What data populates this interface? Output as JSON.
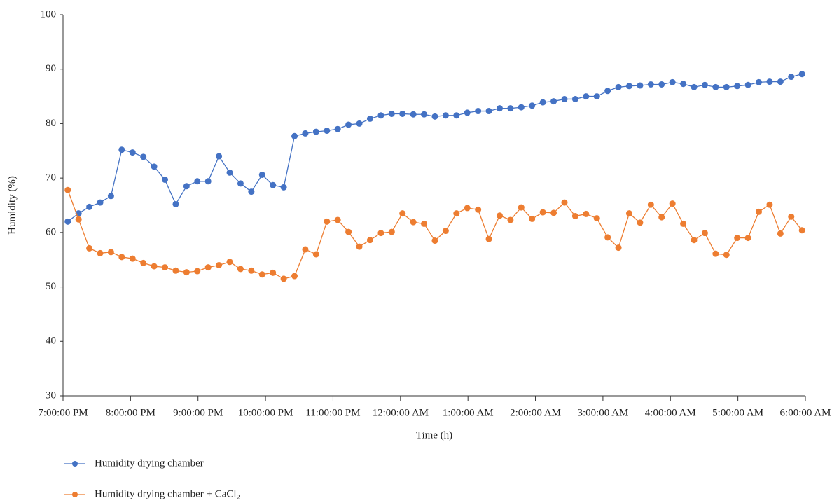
{
  "chart_data": {
    "type": "line",
    "xlabel": "Time (h)",
    "ylabel": "Humidity (%)",
    "x": [
      0.07,
      0.23,
      0.39,
      0.55,
      0.71,
      0.87,
      1.03,
      1.19,
      1.35,
      1.51,
      1.67,
      1.83,
      1.99,
      2.15,
      2.31,
      2.47,
      2.63,
      2.79,
      2.95,
      3.11,
      3.27,
      3.43,
      3.59,
      3.75,
      3.91,
      4.07,
      4.23,
      4.39,
      4.55,
      4.71,
      4.87,
      5.03,
      5.19,
      5.35,
      5.51,
      5.67,
      5.83,
      5.99,
      6.15,
      6.31,
      6.47,
      6.63,
      6.79,
      6.95,
      7.11,
      7.27,
      7.43,
      7.59,
      7.75,
      7.91,
      8.07,
      8.23,
      8.39,
      8.55,
      8.71,
      8.87,
      9.03,
      9.19,
      9.35,
      9.51,
      9.67,
      9.83,
      9.99,
      10.15,
      10.31,
      10.47,
      10.63,
      10.79,
      10.95
    ],
    "series": [
      {
        "name": "Humidity drying chamber",
        "color": "#4472c4",
        "values": [
          62,
          63.5,
          64.7,
          65.5,
          66.7,
          75.2,
          74.7,
          73.9,
          72.1,
          69.7,
          65.2,
          68.5,
          69.4,
          69.4,
          74,
          71,
          69,
          67.5,
          70.6,
          68.7,
          68.3,
          77.7,
          78.2,
          78.5,
          78.7,
          79,
          79.8,
          80,
          80.9,
          81.5,
          81.8,
          81.8,
          81.7,
          81.7,
          81.3,
          81.5,
          81.5,
          82,
          82.3,
          82.3,
          82.8,
          82.8,
          83,
          83.3,
          83.9,
          84.1,
          84.5,
          84.5,
          85,
          85,
          86,
          86.7,
          86.9,
          87,
          87.2,
          87.2,
          87.6,
          87.3,
          86.7,
          87.1,
          86.7,
          86.7,
          86.9,
          87.1,
          87.6,
          87.7,
          87.7,
          88.6,
          89.1
        ]
      },
      {
        "name": "Humidity drying chamber + CaCl₂",
        "color": "#ed7d31",
        "values": [
          67.8,
          62.4,
          57.1,
          56.2,
          56.4,
          55.5,
          55.2,
          54.4,
          53.8,
          53.6,
          53,
          52.7,
          52.9,
          53.6,
          54,
          54.6,
          53.3,
          53,
          52.3,
          52.6,
          51.5,
          52,
          56.9,
          56,
          62,
          62.3,
          60.1,
          57.4,
          58.6,
          59.9,
          60.1,
          63.5,
          61.9,
          61.6,
          58.5,
          60.3,
          63.5,
          64.5,
          64.2,
          58.8,
          63.1,
          62.3,
          64.6,
          62.5,
          63.7,
          63.6,
          65.5,
          63,
          63.4,
          62.6,
          59.1,
          57.2,
          63.5,
          61.8,
          65.1,
          62.8,
          65.3,
          61.6,
          58.6,
          59.9,
          56.1,
          55.9,
          59,
          59,
          63.8,
          65.1,
          59.8,
          62.9,
          60.4
        ]
      }
    ],
    "xlim": [
      0,
      11
    ],
    "xticks": [
      {
        "value": 0,
        "label": "7:00:00 PM"
      },
      {
        "value": 1,
        "label": "8:00:00 PM"
      },
      {
        "value": 2,
        "label": "9:00:00 PM"
      },
      {
        "value": 3,
        "label": "10:00:00 PM"
      },
      {
        "value": 4,
        "label": "11:00:00 PM"
      },
      {
        "value": 5,
        "label": "12:00:00 AM"
      },
      {
        "value": 6,
        "label": "1:00:00 AM"
      },
      {
        "value": 7,
        "label": "2:00:00 AM"
      },
      {
        "value": 8,
        "label": "3:00:00 AM"
      },
      {
        "value": 9,
        "label": "4:00:00 AM"
      },
      {
        "value": 10,
        "label": "5:00:00 AM"
      },
      {
        "value": 11,
        "label": "6:00:00 AM"
      }
    ],
    "ylim": [
      30,
      100
    ],
    "yticks": [
      30,
      40,
      50,
      60,
      70,
      80,
      90,
      100
    ],
    "grid": false,
    "legend": "bottom"
  }
}
